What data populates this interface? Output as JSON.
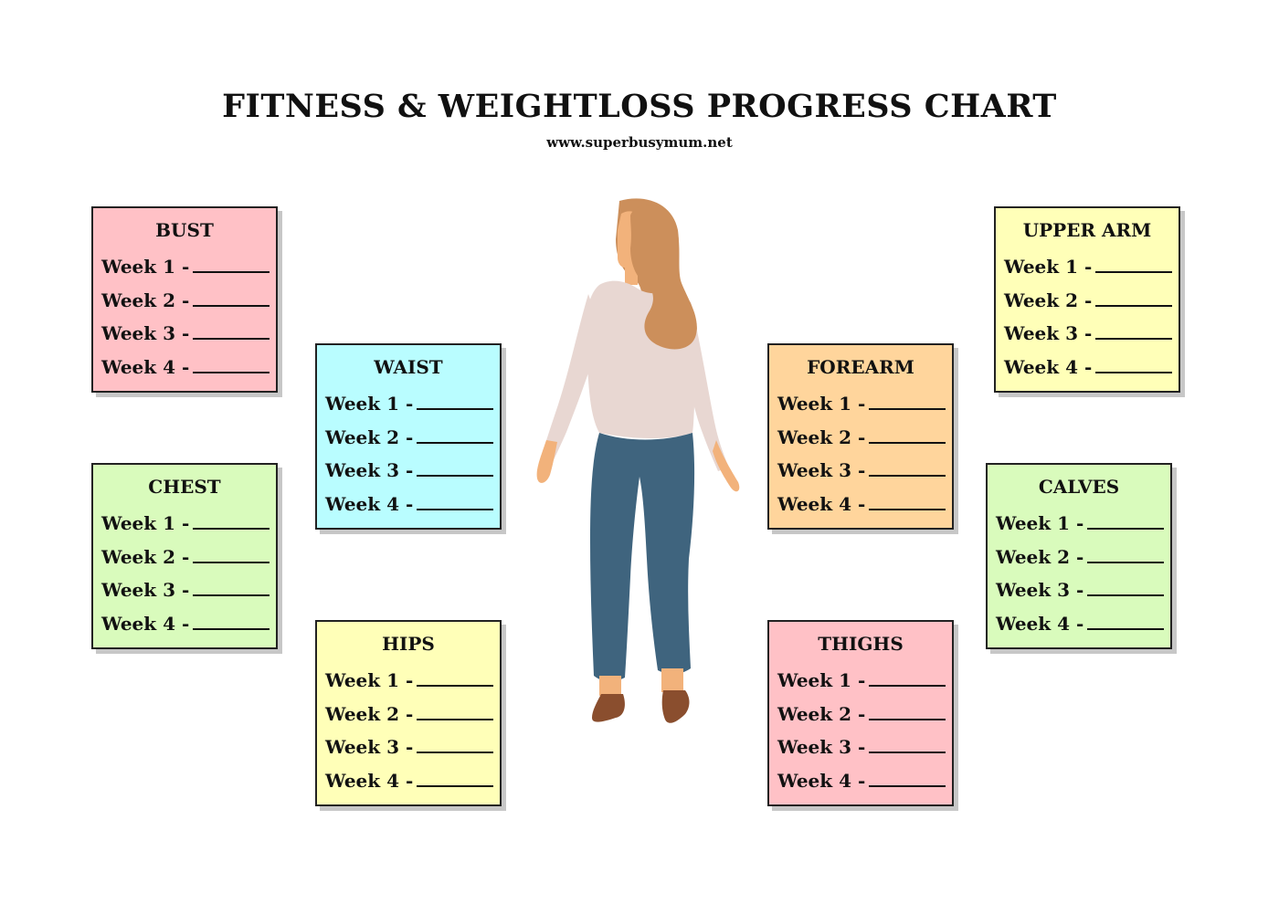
{
  "title": "FITNESS & WEIGHTLOSS PROGRESS CHART",
  "website": "www.superbusymum.net",
  "colors": {
    "pink": "#ffc1c6",
    "green": "#d9fbbc",
    "cyan": "#b9fdff",
    "yellow": "#ffffb8",
    "orange": "#ffd59c",
    "figure_shirt": "#e8d7d2",
    "figure_pants": "#3f647e",
    "figure_skin": "#f2b27b",
    "figure_hair": "#cc8f5b",
    "figure_shoes": "#8a4e2e"
  },
  "figure": {
    "icon": "woman-figure-icon"
  },
  "cards": [
    {
      "id": "bust",
      "title": "BUST",
      "color": "#ffc1c6",
      "rows": [
        "Week 1 -",
        "Week 2 -",
        "Week 3 -",
        "Week 4 -"
      ]
    },
    {
      "id": "chest",
      "title": "CHEST",
      "color": "#d9fbbc",
      "rows": [
        "Week 1 -",
        "Week 2 -",
        "Week 3 -",
        "Week 4 -"
      ]
    },
    {
      "id": "waist",
      "title": "WAIST",
      "color": "#b9fdff",
      "rows": [
        "Week 1 -",
        "Week 2 -",
        "Week 3 -",
        "Week 4 -"
      ]
    },
    {
      "id": "hips",
      "title": "HIPS",
      "color": "#ffffb8",
      "rows": [
        "Week 1 -",
        "Week 2 -",
        "Week 3 -",
        "Week 4 -"
      ]
    },
    {
      "id": "forearm",
      "title": "FOREARM",
      "color": "#ffd59c",
      "rows": [
        "Week 1 -",
        "Week 2 -",
        "Week 3 -",
        "Week 4 -"
      ]
    },
    {
      "id": "thighs",
      "title": "THIGHS",
      "color": "#ffc1c6",
      "rows": [
        "Week 1 -",
        "Week 2 -",
        "Week 3 -",
        "Week 4 -"
      ]
    },
    {
      "id": "upper-arm",
      "title": "UPPER ARM",
      "color": "#ffffb8",
      "rows": [
        "Week 1 -",
        "Week 2 -",
        "Week 3 -",
        "Week 4 -"
      ]
    },
    {
      "id": "calves",
      "title": "CALVES",
      "color": "#d9fbbc",
      "rows": [
        "Week 1 -",
        "Week 2 -",
        "Week 3 -",
        "Week 4 -"
      ]
    }
  ]
}
